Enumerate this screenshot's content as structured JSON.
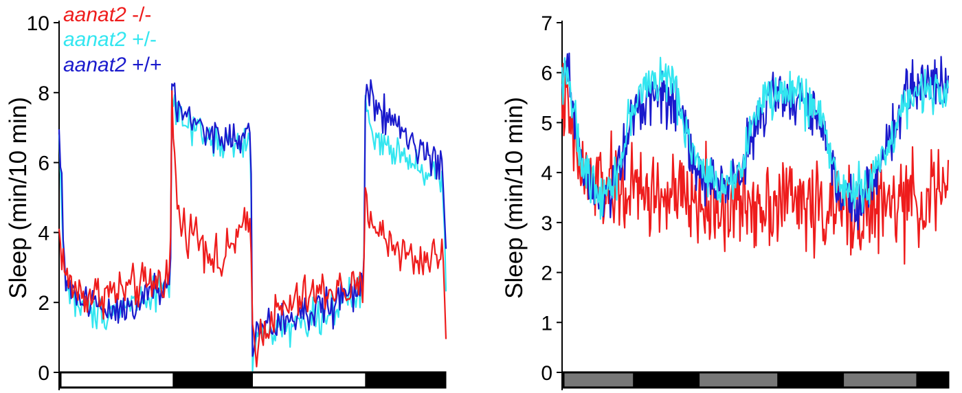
{
  "colors": {
    "mutant": "#ee1c1c",
    "het": "#33e6f0",
    "wild": "#1a1acc",
    "light_bar": "#ffffff",
    "dark_bar": "#000000",
    "subjective_day_bar": "#777777"
  },
  "legend": [
    {
      "gene": "aanat2",
      "genotype": "-/-",
      "series": "mutant"
    },
    {
      "gene": "aanat2",
      "genotype": "+/-",
      "series": "het"
    },
    {
      "gene": "aanat2",
      "genotype": "+/+",
      "series": "wild"
    }
  ],
  "chart_data": [
    {
      "type": "line",
      "panel": "left",
      "ylabel": "Sleep (min/10 min)",
      "xlabel": "",
      "ylim": [
        0,
        10
      ],
      "yticks": [
        "0",
        "2",
        "4",
        "6",
        "8",
        "10"
      ],
      "x_unit": "hours",
      "xlim": [
        0,
        48
      ],
      "light_dark_bars": [
        {
          "start": 0,
          "end": 14,
          "state": "light"
        },
        {
          "start": 14,
          "end": 24,
          "state": "dark"
        },
        {
          "start": 24,
          "end": 38,
          "state": "light"
        },
        {
          "start": 38,
          "end": 48,
          "state": "dark"
        }
      ],
      "series_profiles": [
        {
          "name": "aanat2 -/-",
          "key": "mutant",
          "noise": 0.45,
          "points": [
            [
              0,
              4.0
            ],
            [
              0.3,
              3.5
            ],
            [
              1,
              2.6
            ],
            [
              3,
              2.2
            ],
            [
              7,
              2.3
            ],
            [
              11,
              2.5
            ],
            [
              13.8,
              2.8
            ],
            [
              14,
              7.9
            ],
            [
              14.3,
              6.0
            ],
            [
              15,
              4.2
            ],
            [
              17,
              4.0
            ],
            [
              19,
              3.4
            ],
            [
              20,
              3.0
            ],
            [
              22,
              3.9
            ],
            [
              23.8,
              4.2
            ],
            [
              24,
              1.2
            ],
            [
              24.5,
              0.8
            ],
            [
              26,
              1.5
            ],
            [
              30,
              2.1
            ],
            [
              34,
              2.4
            ],
            [
              37.8,
              2.3
            ],
            [
              38,
              5.1
            ],
            [
              38.5,
              4.6
            ],
            [
              40,
              3.9
            ],
            [
              42,
              3.6
            ],
            [
              44,
              3.2
            ],
            [
              46,
              3.3
            ],
            [
              47.6,
              3.4
            ],
            [
              48,
              1.4
            ]
          ]
        },
        {
          "name": "aanat2 +/-",
          "key": "het",
          "noise": 0.35,
          "points": [
            [
              0,
              6.7
            ],
            [
              0.3,
              5.0
            ],
            [
              0.7,
              2.6
            ],
            [
              2,
              2.0
            ],
            [
              4,
              1.7
            ],
            [
              7,
              1.8
            ],
            [
              10,
              2.1
            ],
            [
              13.8,
              2.6
            ],
            [
              14,
              8.2
            ],
            [
              14.5,
              7.3
            ],
            [
              17,
              6.8
            ],
            [
              20,
              6.5
            ],
            [
              23.8,
              6.5
            ],
            [
              24,
              0.2
            ],
            [
              24.5,
              1.0
            ],
            [
              27,
              1.3
            ],
            [
              30,
              1.4
            ],
            [
              34,
              1.8
            ],
            [
              37.8,
              2.3
            ],
            [
              38,
              7.8
            ],
            [
              39,
              6.6
            ],
            [
              42,
              6.4
            ],
            [
              45,
              5.9
            ],
            [
              47.6,
              5.5
            ],
            [
              48,
              2.5
            ]
          ]
        },
        {
          "name": "aanat2 +/+",
          "key": "wild",
          "noise": 0.4,
          "points": [
            [
              0,
              6.8
            ],
            [
              0.3,
              5.2
            ],
            [
              0.7,
              2.8
            ],
            [
              2,
              2.2
            ],
            [
              4,
              2.0
            ],
            [
              7,
              1.8
            ],
            [
              10,
              2.1
            ],
            [
              13.8,
              2.5
            ],
            [
              14,
              8.5
            ],
            [
              14.5,
              7.5
            ],
            [
              17,
              7.2
            ],
            [
              20,
              6.6
            ],
            [
              23.8,
              6.8
            ],
            [
              24,
              0.6
            ],
            [
              24.5,
              1.1
            ],
            [
              27,
              1.4
            ],
            [
              30,
              1.6
            ],
            [
              34,
              2.0
            ],
            [
              37.8,
              2.5
            ],
            [
              38,
              8.2
            ],
            [
              39,
              7.6
            ],
            [
              42,
              7.0
            ],
            [
              45,
              6.3
            ],
            [
              47.6,
              5.9
            ],
            [
              48,
              3.0
            ]
          ]
        }
      ]
    },
    {
      "type": "line",
      "panel": "right",
      "ylabel": "Sleep (min/10 min)",
      "xlabel": "",
      "ylim": [
        0,
        7
      ],
      "yticks": [
        "0",
        "1",
        "2",
        "3",
        "4",
        "5",
        "6",
        "7"
      ],
      "x_unit": "hours",
      "xlim": [
        0,
        72
      ],
      "light_dark_bars": [
        {
          "start": 0,
          "end": 13,
          "state": "subjective-day"
        },
        {
          "start": 13,
          "end": 25.5,
          "state": "dark"
        },
        {
          "start": 25.5,
          "end": 40,
          "state": "subjective-day"
        },
        {
          "start": 40,
          "end": 52.5,
          "state": "dark"
        },
        {
          "start": 52.5,
          "end": 66,
          "state": "subjective-day"
        },
        {
          "start": 66,
          "end": 72,
          "state": "dark"
        }
      ],
      "series_profiles": [
        {
          "name": "aanat2 -/-",
          "key": "mutant",
          "noise": 0.65,
          "points": [
            [
              0,
              5.6
            ],
            [
              1,
              5.2
            ],
            [
              2,
              4.6
            ],
            [
              4,
              3.9
            ],
            [
              8,
              3.7
            ],
            [
              14,
              3.6
            ],
            [
              20,
              3.5
            ],
            [
              26,
              3.4
            ],
            [
              30,
              3.3
            ],
            [
              36,
              3.4
            ],
            [
              42,
              3.5
            ],
            [
              48,
              3.3
            ],
            [
              54,
              3.2
            ],
            [
              60,
              3.3
            ],
            [
              66,
              3.4
            ],
            [
              72,
              3.7
            ]
          ]
        },
        {
          "name": "aanat2 +/-",
          "key": "het",
          "noise": 0.32,
          "points": [
            [
              0,
              5.9
            ],
            [
              1,
              6.2
            ],
            [
              2,
              5.2
            ],
            [
              4,
              4.0
            ],
            [
              8,
              3.6
            ],
            [
              11,
              4.2
            ],
            [
              13,
              5.3
            ],
            [
              16,
              5.8
            ],
            [
              20,
              5.9
            ],
            [
              23,
              5.0
            ],
            [
              25,
              4.2
            ],
            [
              28,
              3.8
            ],
            [
              31,
              3.8
            ],
            [
              34,
              4.3
            ],
            [
              36,
              5.2
            ],
            [
              40,
              5.6
            ],
            [
              44,
              5.6
            ],
            [
              48,
              5.2
            ],
            [
              50,
              4.4
            ],
            [
              52,
              3.7
            ],
            [
              55,
              3.6
            ],
            [
              58,
              3.9
            ],
            [
              61,
              4.6
            ],
            [
              64,
              5.4
            ],
            [
              68,
              5.6
            ],
            [
              72,
              5.8
            ]
          ]
        },
        {
          "name": "aanat2 +/+",
          "key": "wild",
          "noise": 0.38,
          "points": [
            [
              0,
              5.5
            ],
            [
              1,
              6.4
            ],
            [
              2,
              5.4
            ],
            [
              4,
              4.0
            ],
            [
              8,
              3.5
            ],
            [
              11,
              4.1
            ],
            [
              13,
              5.2
            ],
            [
              16,
              5.6
            ],
            [
              20,
              5.6
            ],
            [
              23,
              4.8
            ],
            [
              25,
              4.0
            ],
            [
              28,
              3.8
            ],
            [
              31,
              3.7
            ],
            [
              34,
              4.2
            ],
            [
              36,
              5.0
            ],
            [
              40,
              5.5
            ],
            [
              44,
              5.5
            ],
            [
              48,
              5.0
            ],
            [
              50,
              4.2
            ],
            [
              52,
              3.6
            ],
            [
              55,
              3.4
            ],
            [
              58,
              3.8
            ],
            [
              61,
              4.6
            ],
            [
              64,
              5.5
            ],
            [
              68,
              5.8
            ],
            [
              72,
              6.0
            ]
          ]
        }
      ]
    }
  ]
}
